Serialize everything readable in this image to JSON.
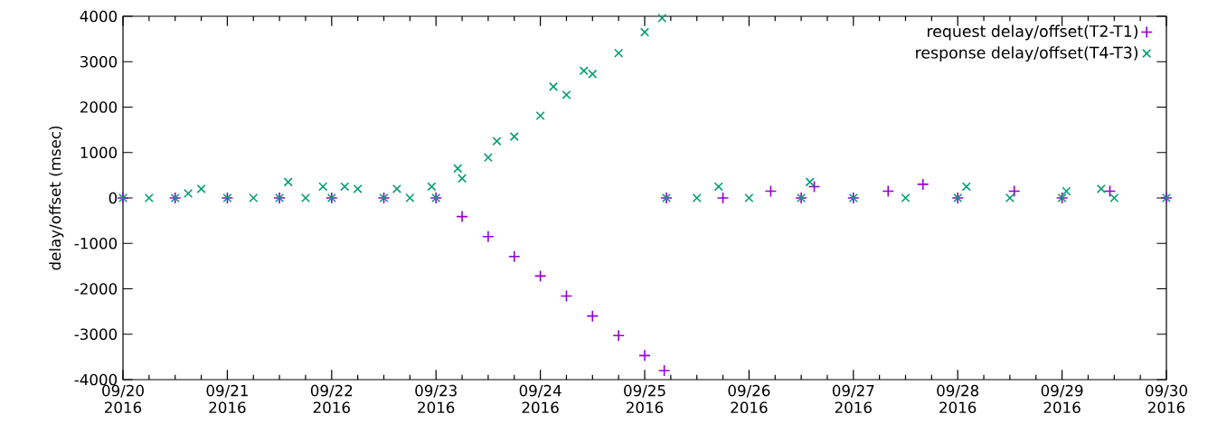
{
  "chart_data": {
    "type": "scatter",
    "ylabel": "delay/offset (msec)",
    "xlim": [
      "2016-09-20T00:00",
      "2016-09-30T00:00"
    ],
    "xticks": [
      {
        "value": "2016-09-20",
        "label": "09/20 2016"
      },
      {
        "value": "2016-09-21",
        "label": "09/21 2016"
      },
      {
        "value": "2016-09-22",
        "label": "09/22 2016"
      },
      {
        "value": "2016-09-23",
        "label": "09/23 2016"
      },
      {
        "value": "2016-09-24",
        "label": "09/24 2016"
      },
      {
        "value": "2016-09-25",
        "label": "09/25 2016"
      },
      {
        "value": "2016-09-26",
        "label": "09/26 2016"
      },
      {
        "value": "2016-09-27",
        "label": "09/27 2016"
      },
      {
        "value": "2016-09-28",
        "label": "09/28 2016"
      },
      {
        "value": "2016-09-29",
        "label": "09/29 2016"
      },
      {
        "value": "2016-09-30",
        "label": "09/30 2016"
      }
    ],
    "ylim": [
      -4000,
      4000
    ],
    "yticks": [
      -4000,
      -3000,
      -2000,
      -1000,
      0,
      1000,
      2000,
      3000,
      4000
    ],
    "grid": false,
    "legend": "top right",
    "series": [
      {
        "name": "request delay/offset(T2-T1)",
        "color": "#9400d3",
        "marker": "plus",
        "x": [
          "2016-09-20T00:00",
          "2016-09-20T12:00",
          "2016-09-21T00:00",
          "2016-09-21T12:00",
          "2016-09-22T00:00",
          "2016-09-22T12:00",
          "2016-09-23T00:00",
          "2016-09-23T06:00",
          "2016-09-23T12:00",
          "2016-09-23T18:00",
          "2016-09-24T00:00",
          "2016-09-24T06:00",
          "2016-09-24T12:00",
          "2016-09-24T18:00",
          "2016-09-25T00:00",
          "2016-09-25T04:30",
          "2016-09-25T05:00",
          "2016-09-25T18:00",
          "2016-09-26T05:00",
          "2016-09-26T12:00",
          "2016-09-26T15:00",
          "2016-09-27T00:00",
          "2016-09-27T08:00",
          "2016-09-27T16:00",
          "2016-09-28T00:00",
          "2016-09-28T13:00",
          "2016-09-29T00:00",
          "2016-09-29T11:00",
          "2016-09-30T00:00"
        ],
        "values": [
          0,
          0,
          0,
          0,
          0,
          0,
          0,
          -410,
          -850,
          -1290,
          -1720,
          -2160,
          -2600,
          -3030,
          -3470,
          -3800,
          0,
          0,
          150,
          0,
          250,
          0,
          150,
          300,
          0,
          150,
          0,
          150,
          0
        ]
      },
      {
        "name": "response delay/offset(T4-T3)",
        "color": "#009e73",
        "marker": "cross",
        "x": [
          "2016-09-20T00:00",
          "2016-09-20T06:00",
          "2016-09-20T12:00",
          "2016-09-20T15:00",
          "2016-09-20T18:00",
          "2016-09-21T00:00",
          "2016-09-21T06:00",
          "2016-09-21T12:00",
          "2016-09-21T14:00",
          "2016-09-21T18:00",
          "2016-09-21T22:00",
          "2016-09-22T00:00",
          "2016-09-22T03:00",
          "2016-09-22T06:00",
          "2016-09-22T12:00",
          "2016-09-22T15:00",
          "2016-09-22T18:00",
          "2016-09-22T23:00",
          "2016-09-23T00:00",
          "2016-09-23T05:00",
          "2016-09-23T06:00",
          "2016-09-23T12:00",
          "2016-09-23T14:00",
          "2016-09-23T18:00",
          "2016-09-24T00:00",
          "2016-09-24T03:00",
          "2016-09-24T06:00",
          "2016-09-24T10:00",
          "2016-09-24T12:00",
          "2016-09-24T18:00",
          "2016-09-25T00:00",
          "2016-09-25T04:00",
          "2016-09-25T05:00",
          "2016-09-25T12:00",
          "2016-09-25T17:00",
          "2016-09-26T00:00",
          "2016-09-26T12:00",
          "2016-09-26T14:00",
          "2016-09-27T00:00",
          "2016-09-27T12:00",
          "2016-09-28T00:00",
          "2016-09-28T02:00",
          "2016-09-28T12:00",
          "2016-09-29T00:00",
          "2016-09-29T01:00",
          "2016-09-29T09:00",
          "2016-09-29T12:00",
          "2016-09-30T00:00"
        ],
        "values": [
          0,
          0,
          0,
          100,
          200,
          0,
          0,
          0,
          350,
          0,
          250,
          0,
          250,
          200,
          0,
          200,
          0,
          250,
          0,
          650,
          430,
          890,
          1250,
          1350,
          1810,
          2450,
          2270,
          2800,
          2730,
          3190,
          3650,
          3960,
          0,
          0,
          250,
          0,
          0,
          350,
          0,
          0,
          0,
          250,
          0,
          0,
          150,
          200,
          0,
          0
        ]
      }
    ]
  }
}
